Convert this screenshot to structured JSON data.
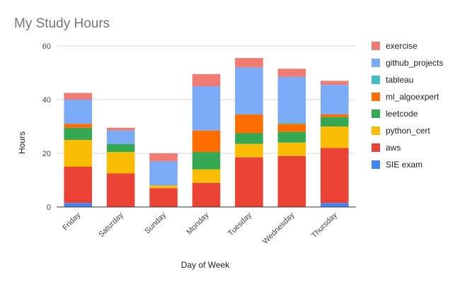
{
  "chart_data": {
    "type": "bar",
    "stacked": true,
    "title": "My Study Hours",
    "xlabel": "Day of Week",
    "ylabel": "Hours",
    "ylim": [
      0,
      60
    ],
    "yticks": [
      0,
      20,
      40,
      60
    ],
    "grid": true,
    "legend_position": "right",
    "categories": [
      "Friday",
      "Saturday",
      "Sunday",
      "Monday",
      "Tuesday",
      "Wednesday",
      "Thursday"
    ],
    "series": [
      {
        "name": "SIE exam",
        "color": "#4285f4",
        "values": [
          1.5,
          0,
          0,
          0,
          0,
          0,
          1.5
        ]
      },
      {
        "name": "aws",
        "color": "#ea4335",
        "values": [
          13.5,
          12.5,
          7,
          9,
          18.5,
          19,
          20.5
        ]
      },
      {
        "name": "python_cert",
        "color": "#fbbc04",
        "values": [
          10,
          8,
          1,
          5,
          5,
          5,
          8
        ]
      },
      {
        "name": "leetcode",
        "color": "#34a853",
        "values": [
          4.5,
          3,
          0,
          6.5,
          4,
          4,
          3.5
        ]
      },
      {
        "name": "ml_algoexpert",
        "color": "#ff6d01",
        "values": [
          1.5,
          0,
          0,
          8,
          7,
          3,
          1
        ]
      },
      {
        "name": "tableau",
        "color": "#46bdc6",
        "values": [
          0,
          0,
          0,
          0,
          0,
          0.5,
          0
        ]
      },
      {
        "name": "github_projects",
        "color": "#7baaf7",
        "values": [
          9,
          5,
          9,
          16.5,
          17.5,
          17,
          11
        ]
      },
      {
        "name": "exercise",
        "color": "#f07b72",
        "values": [
          2.5,
          1,
          3,
          4.5,
          3.5,
          3,
          1.5
        ]
      }
    ]
  }
}
